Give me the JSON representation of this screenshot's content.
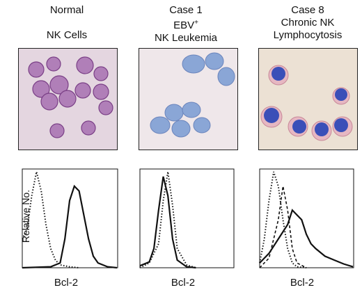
{
  "figure": {
    "panels": [
      {
        "title_lines": [
          "Normal",
          "",
          "NK Cells"
        ],
        "xlabel": "Bcl-2"
      },
      {
        "title_lines": [
          "Case 1",
          "EBV+",
          "NK Leukemia"
        ],
        "xlabel": "Bcl-2"
      },
      {
        "title_lines": [
          "Case 8",
          "Chronic NK",
          "Lymphocytosis"
        ],
        "xlabel": "Bcl-2"
      }
    ],
    "ylabel": "Relative No."
  },
  "chart_data": [
    {
      "type": "line",
      "title": "",
      "xlabel": "Bcl-2",
      "ylabel": "Relative No.",
      "series": [
        {
          "style": "dotted",
          "x": [
            0,
            0.05,
            0.1,
            0.15,
            0.2,
            0.25,
            0.3,
            0.35,
            0.4,
            0.5,
            0.6
          ],
          "y": [
            0.3,
            0.4,
            0.75,
            1.0,
            0.8,
            0.45,
            0.2,
            0.08,
            0.03,
            0.01,
            0
          ]
        },
        {
          "style": "solid",
          "x": [
            0,
            0.3,
            0.4,
            0.45,
            0.5,
            0.55,
            0.6,
            0.65,
            0.7,
            0.75,
            0.8,
            0.9,
            1.0
          ],
          "y": [
            0,
            0.01,
            0.05,
            0.3,
            0.7,
            0.85,
            0.8,
            0.55,
            0.3,
            0.12,
            0.05,
            0.01,
            0
          ]
        }
      ]
    },
    {
      "type": "line",
      "title": "",
      "xlabel": "Bcl-2",
      "ylabel": "",
      "series": [
        {
          "style": "dotted",
          "x": [
            0,
            0.1,
            0.2,
            0.25,
            0.3,
            0.35,
            0.4,
            0.5,
            0.6
          ],
          "y": [
            0,
            0.05,
            0.25,
            0.7,
            1.0,
            0.65,
            0.2,
            0.03,
            0
          ]
        },
        {
          "style": "solid",
          "x": [
            0,
            0.1,
            0.15,
            0.2,
            0.25,
            0.3,
            0.35,
            0.4,
            0.5,
            0.6
          ],
          "y": [
            0.02,
            0.06,
            0.2,
            0.6,
            0.95,
            0.75,
            0.3,
            0.08,
            0.01,
            0
          ]
        }
      ]
    },
    {
      "type": "line",
      "title": "",
      "xlabel": "Bcl-2",
      "ylabel": "",
      "series": [
        {
          "style": "dotted",
          "x": [
            0,
            0.05,
            0.1,
            0.15,
            0.2,
            0.25,
            0.3,
            0.35,
            0.4,
            0.5
          ],
          "y": [
            0.05,
            0.3,
            0.7,
            1.0,
            0.85,
            0.5,
            0.2,
            0.05,
            0.01,
            0
          ]
        },
        {
          "style": "dashed",
          "x": [
            0,
            0.1,
            0.2,
            0.25,
            0.3,
            0.35,
            0.4,
            0.5
          ],
          "y": [
            0,
            0.1,
            0.5,
            0.85,
            0.6,
            0.2,
            0.05,
            0
          ]
        },
        {
          "style": "solid",
          "x": [
            0,
            0.1,
            0.2,
            0.3,
            0.35,
            0.4,
            0.45,
            0.5,
            0.55,
            0.6,
            0.7,
            0.8,
            0.9,
            1.0
          ],
          "y": [
            0.05,
            0.15,
            0.3,
            0.45,
            0.6,
            0.55,
            0.5,
            0.35,
            0.25,
            0.2,
            0.12,
            0.08,
            0.04,
            0.01
          ]
        }
      ]
    }
  ]
}
